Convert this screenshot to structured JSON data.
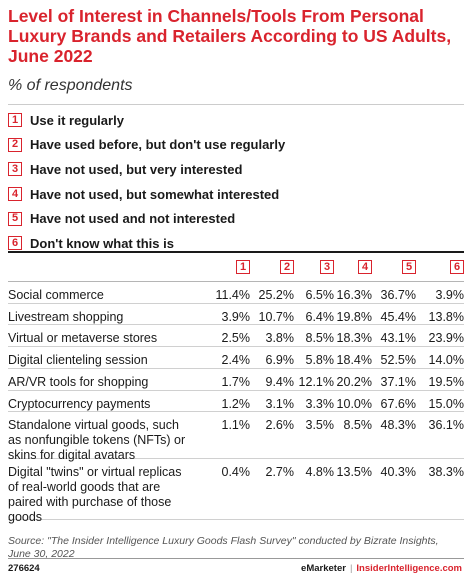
{
  "title": "Level of Interest in Channels/Tools From Personal Luxury Brands and Retailers According to US Adults, June 2022",
  "subtitle": "% of respondents",
  "legend": [
    {
      "num": "1",
      "label": "Use it regularly"
    },
    {
      "num": "2",
      "label": "Have used before, but don't use regularly"
    },
    {
      "num": "3",
      "label": "Have not used, but very interested"
    },
    {
      "num": "4",
      "label": "Have not used, but somewhat interested"
    },
    {
      "num": "5",
      "label": "Have not used and not interested"
    },
    {
      "num": "6",
      "label": "Don't know what this is"
    }
  ],
  "column_headers": [
    "1",
    "2",
    "3",
    "4",
    "5",
    "6"
  ],
  "rows": [
    {
      "label": "Social commerce",
      "cells": [
        "11.4%",
        "25.2%",
        "6.5%",
        "16.3%",
        "36.7%",
        "3.9%"
      ]
    },
    {
      "label": "Livestream shopping",
      "cells": [
        "3.9%",
        "10.7%",
        "6.4%",
        "19.8%",
        "45.4%",
        "13.8%"
      ]
    },
    {
      "label": "Virtual or metaverse stores",
      "cells": [
        "2.5%",
        "3.8%",
        "8.5%",
        "18.3%",
        "43.1%",
        "23.9%"
      ]
    },
    {
      "label": "Digital clienteling session",
      "cells": [
        "2.4%",
        "6.9%",
        "5.8%",
        "18.4%",
        "52.5%",
        "14.0%"
      ]
    },
    {
      "label": "AR/VR tools for shopping",
      "cells": [
        "1.7%",
        "9.4%",
        "12.1%",
        "20.2%",
        "37.1%",
        "19.5%"
      ]
    },
    {
      "label": "Cryptocurrency payments",
      "cells": [
        "1.2%",
        "3.1%",
        "3.3%",
        "10.0%",
        "67.6%",
        "15.0%"
      ]
    },
    {
      "label": "Standalone virtual goods, such as nonfungible tokens (NFTs) or skins for digital avatars",
      "cells": [
        "1.1%",
        "2.6%",
        "3.5%",
        "8.5%",
        "48.3%",
        "36.1%"
      ]
    },
    {
      "label": "Digital \"twins\" or virtual replicas of real-world goods that are paired with purchase of those goods",
      "cells": [
        "0.4%",
        "2.7%",
        "4.8%",
        "13.5%",
        "40.3%",
        "38.3%"
      ]
    }
  ],
  "chart_data": {
    "type": "table",
    "title": "Level of Interest in Channels/Tools From Personal Luxury Brands and Retailers According to US Adults, June 2022",
    "subtitle": "% of respondents",
    "columns": [
      "Use it regularly",
      "Have used before, but don't use regularly",
      "Have not used, but very interested",
      "Have not used, but somewhat interested",
      "Have not used and not interested",
      "Don't know what this is"
    ],
    "categories": [
      "Social commerce",
      "Livestream shopping",
      "Virtual or metaverse stores",
      "Digital clienteling session",
      "AR/VR tools for shopping",
      "Cryptocurrency payments",
      "Standalone virtual goods, such as nonfungible tokens (NFTs) or skins for digital avatars",
      "Digital \"twins\" or virtual replicas of real-world goods that are paired with purchase of those goods"
    ],
    "series": [
      {
        "name": "Use it regularly",
        "values": [
          11.4,
          3.9,
          2.5,
          2.4,
          1.7,
          1.2,
          1.1,
          0.4
        ]
      },
      {
        "name": "Have used before, but don't use regularly",
        "values": [
          25.2,
          10.7,
          3.8,
          6.9,
          9.4,
          3.1,
          2.6,
          2.7
        ]
      },
      {
        "name": "Have not used, but very interested",
        "values": [
          6.5,
          6.4,
          8.5,
          5.8,
          12.1,
          3.3,
          3.5,
          4.8
        ]
      },
      {
        "name": "Have not used, but somewhat interested",
        "values": [
          16.3,
          19.8,
          18.3,
          18.4,
          20.2,
          10.0,
          8.5,
          13.5
        ]
      },
      {
        "name": "Have not used and not interested",
        "values": [
          36.7,
          45.4,
          43.1,
          52.5,
          37.1,
          67.6,
          48.3,
          40.3
        ]
      },
      {
        "name": "Don't know what this is",
        "values": [
          3.9,
          13.8,
          23.9,
          14.0,
          19.5,
          15.0,
          36.1,
          38.3
        ]
      }
    ],
    "unit": "%"
  },
  "source": "Source: \"The Insider Intelligence Luxury Goods Flash Survey\" conducted by Bizrate Insights, June 30, 2022",
  "footer": {
    "chart_id": "276624",
    "brand": "eMarketer",
    "separator": "|",
    "site": "InsiderIntelligence.com"
  },
  "colors": {
    "accent": "#d9232d",
    "text": "#1a1a1a"
  }
}
